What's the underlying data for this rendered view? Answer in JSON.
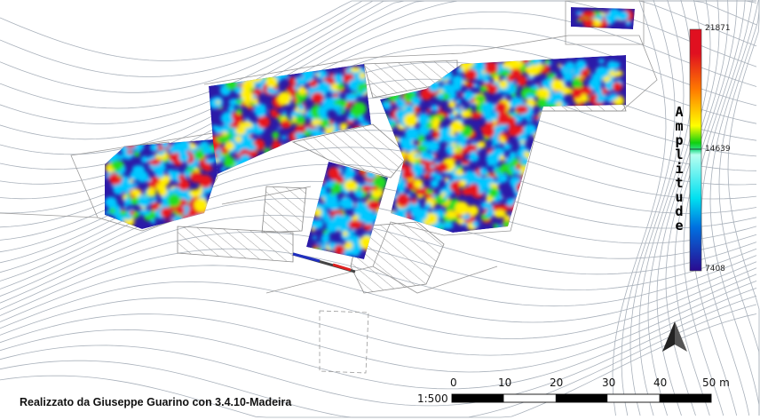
{
  "credit": "Realizzato da Giuseppe Guarino con 3.4.10-Madeira",
  "legend": {
    "title": "Amplitude",
    "max": "21871",
    "mid": "14639",
    "min": "7408",
    "colors": [
      "#d7191c",
      "#ff6a00",
      "#ffff00",
      "#00dd00",
      "#80ffee",
      "#00e5ff",
      "#0066ff",
      "#2a0aa0"
    ]
  },
  "scale_bar": {
    "ratio": "1:500",
    "ticks": [
      "0",
      "10",
      "20",
      "30",
      "40",
      "50 m"
    ]
  },
  "north_arrow": "north-arrow-icon",
  "palette": {
    "low": "#2b1aa8",
    "mid_low": "#00c8ff",
    "mid": "#22dd22",
    "mid_high": "#ffee00",
    "high": "#e8141c",
    "contour": "#9aa4b0",
    "hatch": "#888888"
  }
}
